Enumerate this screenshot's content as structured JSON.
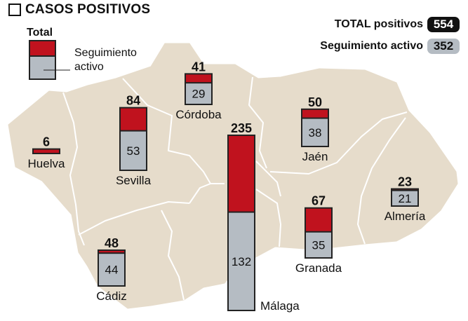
{
  "header": {
    "title": "CASOS POSITIVOS"
  },
  "summary": {
    "total_label": "TOTAL positivos",
    "total_value": "554",
    "active_label": "Seguimiento activo",
    "active_value": "352"
  },
  "legend": {
    "total_label": "Total",
    "active_label_line1": "Seguimiento",
    "active_label_line2": "activo"
  },
  "colors": {
    "map_fill": "#e6dccb",
    "map_border": "#ffffff",
    "total": "#c0121e",
    "active": "#b5bcc3",
    "outline": "#222222"
  },
  "chart_data": {
    "type": "bar",
    "title": "CASOS POSITIVOS",
    "categories": [
      "Huelva",
      "Sevilla",
      "Córdoba",
      "Cádiz",
      "Málaga",
      "Jaén",
      "Granada",
      "Almería"
    ],
    "series": [
      {
        "name": "Total",
        "values": [
          6,
          84,
          41,
          48,
          235,
          50,
          67,
          23
        ]
      },
      {
        "name": "Seguimiento activo",
        "values": [
          null,
          53,
          29,
          44,
          132,
          38,
          35,
          21
        ]
      }
    ]
  }
}
